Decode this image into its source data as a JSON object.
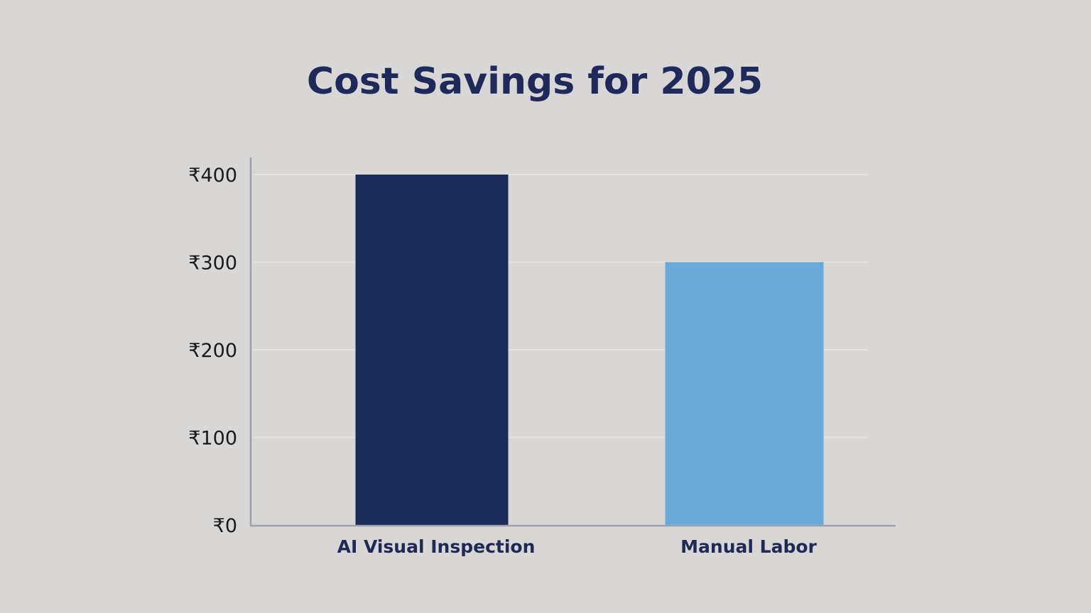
{
  "chart_data": {
    "type": "bar",
    "title": "Cost Savings for 2025",
    "xlabel": "",
    "ylabel": "",
    "categories": [
      "AI Visual Inspection",
      "Manual Labor"
    ],
    "values": [
      400,
      300
    ],
    "colors": [
      "#1c2b58",
      "#6aaad9"
    ],
    "ylim": [
      0,
      400
    ],
    "yticks": [
      0,
      100,
      200,
      300,
      400
    ],
    "ytick_labels": [
      "₹0",
      "₹100",
      "₹200",
      "₹300",
      "₹400"
    ],
    "grid": true,
    "legend": "none"
  }
}
